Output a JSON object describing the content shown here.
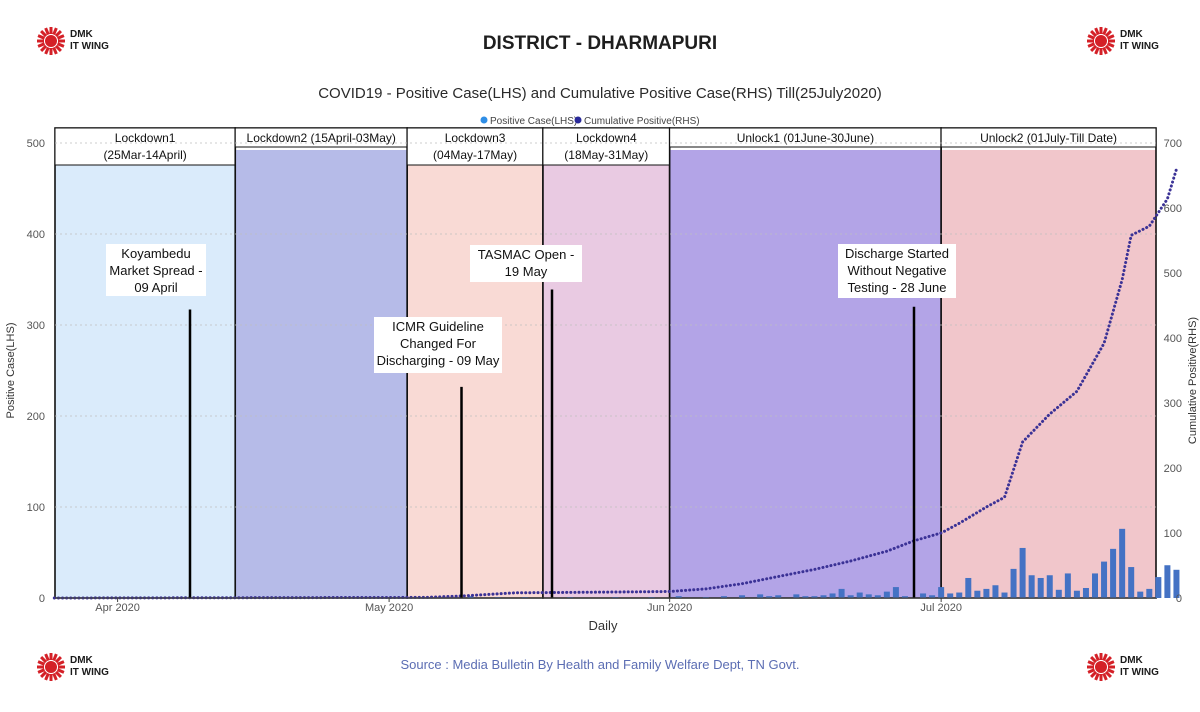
{
  "header": {
    "logo_text_line1": "DMK",
    "logo_text_line2": "IT WING",
    "title": "DISTRICT - DHARMAPURI",
    "subtitle": "COVID19 - Positive Case(LHS) and Cumulative Positive Case(RHS) Till(25July2020)"
  },
  "footer": {
    "source": "Source : Media Bulletin By Health and Family Welfare Dept, TN Govt."
  },
  "colors": {
    "logo_red": "#d42027",
    "bar": "#4472c4",
    "line": "#3b3296",
    "legend_positive": "#2f8ee6",
    "legend_cumulative": "#2a2a9a"
  },
  "chart_data": {
    "type": "bar+line",
    "xlabel": "Daily",
    "ylabel_left": "Positive Case(LHS)",
    "ylabel_right": "Cumulative Positive(RHS)",
    "ylim_left": [
      0,
      500
    ],
    "ylim_right": [
      0,
      700
    ],
    "yticks_left": [
      0,
      100,
      200,
      300,
      400,
      500
    ],
    "yticks_right": [
      0,
      100,
      200,
      300,
      400,
      500,
      600,
      700
    ],
    "legend": [
      "Positive Case(LHS)",
      "Cumulative Positive(RHS)"
    ],
    "legend_position": "top-center",
    "x_range": [
      "2020-03-25",
      "2020-07-25"
    ],
    "x_ticks": [
      {
        "date": "2020-04-01",
        "label": "Apr 2020"
      },
      {
        "date": "2020-05-01",
        "label": "May 2020"
      },
      {
        "date": "2020-06-01",
        "label": "Jun 2020"
      },
      {
        "date": "2020-07-01",
        "label": "Jul 2020"
      }
    ],
    "phases": [
      {
        "label_line1": "Lockdown1",
        "label_line2": "(25Mar-14April)",
        "start": "2020-03-25",
        "end": "2020-04-14",
        "color": "#d6e9fb"
      },
      {
        "label_line1": "Lockdown2 (15April-03May)",
        "label_line2": "",
        "start": "2020-04-14",
        "end": "2020-05-03",
        "color": "#aeb4e6"
      },
      {
        "label_line1": "Lockdown3",
        "label_line2": "(04May-17May)",
        "start": "2020-05-03",
        "end": "2020-05-18",
        "color": "#f8d6d0"
      },
      {
        "label_line1": "Lockdown4",
        "label_line2": "(18May-31May)",
        "start": "2020-05-18",
        "end": "2020-06-01",
        "color": "#e7c4df"
      },
      {
        "label_line1": "Unlock1 (01June-30June)",
        "label_line2": "",
        "start": "2020-06-01",
        "end": "2020-07-01",
        "color": "#ab9ae4"
      },
      {
        "label_line1": "Unlock2 (01July-Till Date)",
        "label_line2": "",
        "start": "2020-07-01",
        "end": "2020-07-25",
        "color": "#f0c0c5"
      }
    ],
    "annotations": [
      {
        "lines": [
          "Koyambedu",
          "Market Spread -",
          "09 April"
        ],
        "date": "2020-04-09",
        "marker_value": 317
      },
      {
        "lines": [
          "ICMR Guideline",
          "Changed For",
          "Discharging - 09 May"
        ],
        "date": "2020-05-09",
        "marker_value": 232
      },
      {
        "lines": [
          "TASMAC Open -",
          "19 May"
        ],
        "date": "2020-05-19",
        "marker_value": 339
      },
      {
        "lines": [
          "Discharge Started",
          "Without Negative",
          "Testing - 28 June"
        ],
        "date": "2020-06-28",
        "marker_value": 320
      }
    ],
    "positive_cases": [
      {
        "date": "2020-05-10",
        "value": 2
      },
      {
        "date": "2020-05-13",
        "value": 1
      },
      {
        "date": "2020-05-16",
        "value": 1
      },
      {
        "date": "2020-05-21",
        "value": 1
      },
      {
        "date": "2020-05-26",
        "value": 1
      },
      {
        "date": "2020-05-30",
        "value": 1
      },
      {
        "date": "2020-06-02",
        "value": 2
      },
      {
        "date": "2020-06-05",
        "value": 1
      },
      {
        "date": "2020-06-07",
        "value": 2
      },
      {
        "date": "2020-06-09",
        "value": 3
      },
      {
        "date": "2020-06-11",
        "value": 4
      },
      {
        "date": "2020-06-12",
        "value": 2
      },
      {
        "date": "2020-06-13",
        "value": 3
      },
      {
        "date": "2020-06-15",
        "value": 4
      },
      {
        "date": "2020-06-16",
        "value": 2
      },
      {
        "date": "2020-06-17",
        "value": 2
      },
      {
        "date": "2020-06-18",
        "value": 3
      },
      {
        "date": "2020-06-19",
        "value": 5
      },
      {
        "date": "2020-06-20",
        "value": 10
      },
      {
        "date": "2020-06-21",
        "value": 3
      },
      {
        "date": "2020-06-22",
        "value": 6
      },
      {
        "date": "2020-06-23",
        "value": 4
      },
      {
        "date": "2020-06-24",
        "value": 3
      },
      {
        "date": "2020-06-25",
        "value": 7
      },
      {
        "date": "2020-06-26",
        "value": 12
      },
      {
        "date": "2020-06-27",
        "value": 2
      },
      {
        "date": "2020-06-29",
        "value": 5
      },
      {
        "date": "2020-06-30",
        "value": 3
      },
      {
        "date": "2020-07-01",
        "value": 12
      },
      {
        "date": "2020-07-02",
        "value": 5
      },
      {
        "date": "2020-07-03",
        "value": 6
      },
      {
        "date": "2020-07-04",
        "value": 22
      },
      {
        "date": "2020-07-05",
        "value": 8
      },
      {
        "date": "2020-07-06",
        "value": 10
      },
      {
        "date": "2020-07-07",
        "value": 14
      },
      {
        "date": "2020-07-08",
        "value": 6
      },
      {
        "date": "2020-07-09",
        "value": 32
      },
      {
        "date": "2020-07-10",
        "value": 55
      },
      {
        "date": "2020-07-11",
        "value": 25
      },
      {
        "date": "2020-07-12",
        "value": 22
      },
      {
        "date": "2020-07-13",
        "value": 25
      },
      {
        "date": "2020-07-14",
        "value": 9
      },
      {
        "date": "2020-07-15",
        "value": 27
      },
      {
        "date": "2020-07-16",
        "value": 8
      },
      {
        "date": "2020-07-17",
        "value": 11
      },
      {
        "date": "2020-07-18",
        "value": 27
      },
      {
        "date": "2020-07-19",
        "value": 40
      },
      {
        "date": "2020-07-20",
        "value": 54
      },
      {
        "date": "2020-07-21",
        "value": 76
      },
      {
        "date": "2020-07-22",
        "value": 34
      },
      {
        "date": "2020-07-23",
        "value": 7
      },
      {
        "date": "2020-07-24",
        "value": 10
      },
      {
        "date": "2020-07-25",
        "value": 23
      },
      {
        "date": "2020-07-26",
        "value": 36
      },
      {
        "date": "2020-07-27",
        "value": 31
      }
    ],
    "cumulative_positive": [
      {
        "date": "2020-03-25",
        "value": 0
      },
      {
        "date": "2020-05-05",
        "value": 1
      },
      {
        "date": "2020-05-09",
        "value": 3
      },
      {
        "date": "2020-05-15",
        "value": 8
      },
      {
        "date": "2020-05-25",
        "value": 9
      },
      {
        "date": "2020-06-01",
        "value": 10
      },
      {
        "date": "2020-06-05",
        "value": 14
      },
      {
        "date": "2020-06-09",
        "value": 22
      },
      {
        "date": "2020-06-13",
        "value": 33
      },
      {
        "date": "2020-06-17",
        "value": 44
      },
      {
        "date": "2020-06-21",
        "value": 57
      },
      {
        "date": "2020-06-25",
        "value": 72
      },
      {
        "date": "2020-06-28",
        "value": 88
      },
      {
        "date": "2020-07-01",
        "value": 100
      },
      {
        "date": "2020-07-03",
        "value": 115
      },
      {
        "date": "2020-07-06",
        "value": 140
      },
      {
        "date": "2020-07-08",
        "value": 155
      },
      {
        "date": "2020-07-10",
        "value": 240
      },
      {
        "date": "2020-07-13",
        "value": 283
      },
      {
        "date": "2020-07-16",
        "value": 318
      },
      {
        "date": "2020-07-19",
        "value": 392
      },
      {
        "date": "2020-07-21",
        "value": 490
      },
      {
        "date": "2020-07-22",
        "value": 558
      },
      {
        "date": "2020-07-24",
        "value": 572
      },
      {
        "date": "2020-07-26",
        "value": 614
      },
      {
        "date": "2020-07-27",
        "value": 660
      }
    ]
  }
}
